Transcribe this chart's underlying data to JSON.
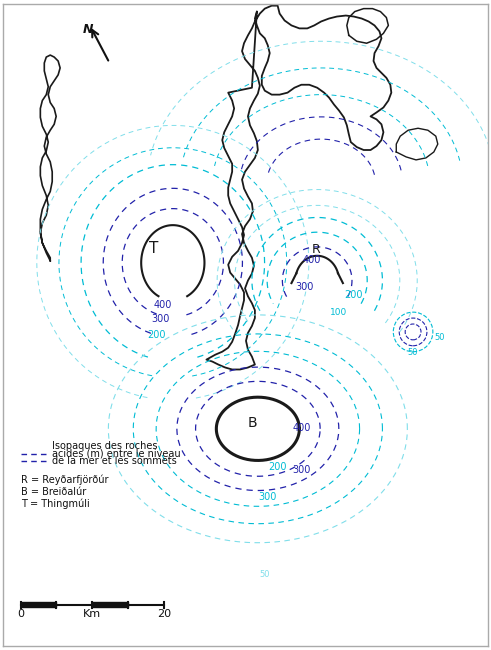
{
  "background_color": "#ffffff",
  "border_color": "#aaaaaa",
  "outline_color": "#1a1a1a",
  "navy_color": "#2222aa",
  "cyan_color": "#00bcd4",
  "light_cyan": "#80deea",
  "legend_lines": [
    "Isopaques des roches",
    "acides (m) entre le niveau",
    "de la mer et les sommets"
  ],
  "label_R": "R = Reyðarfjörðúr",
  "label_B": "B = Breiðalúr",
  "label_T": "T = Thingmúli",
  "scale_label": "Km",
  "scale_0": "0",
  "scale_20": "20"
}
